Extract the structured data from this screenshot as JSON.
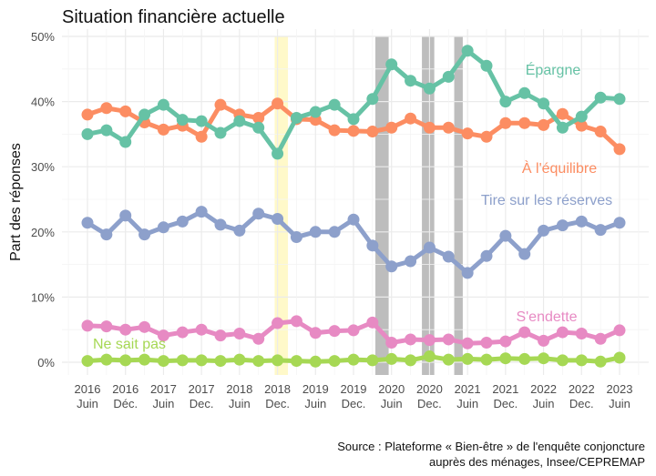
{
  "chart_data": {
    "type": "line",
    "title": "Situation financière actuelle",
    "ylabel": "Part des réponses",
    "xlabel": "",
    "ylim": [
      0,
      50
    ],
    "yticks": [
      "0%",
      "10%",
      "20%",
      "30%",
      "40%",
      "50%"
    ],
    "ytick_values": [
      0,
      10,
      20,
      30,
      40,
      50
    ],
    "grid": true,
    "legend": "inline labels",
    "xtick_labels": [
      [
        "2016",
        "Juin"
      ],
      [
        "2016",
        "Déc."
      ],
      [
        "2017",
        "Juin"
      ],
      [
        "2017",
        "Dec."
      ],
      [
        "2018",
        "Juin"
      ],
      [
        "2018",
        "Dec."
      ],
      [
        "2019",
        "Juin"
      ],
      [
        "2019",
        "Dec."
      ],
      [
        "2020",
        "Juin"
      ],
      [
        "2020",
        "Dec."
      ],
      [
        "2021",
        "Juin"
      ],
      [
        "2021",
        "Dec."
      ],
      [
        "2022",
        "Juin"
      ],
      [
        "2022",
        "Dec."
      ],
      [
        "2023",
        "Juin"
      ]
    ],
    "n_points": 29,
    "highlight_bands": [
      {
        "from": 9.85,
        "to": 10.55,
        "color": "#fff9c9"
      },
      {
        "from": 15.15,
        "to": 15.85,
        "color": "#bdbdbd"
      },
      {
        "from": 17.6,
        "to": 18.25,
        "color": "#bdbdbd"
      },
      {
        "from": 19.3,
        "to": 19.75,
        "color": "#bdbdbd"
      }
    ],
    "series": [
      {
        "name": "Épargne",
        "color": "#66c2a5",
        "values": [
          35,
          35.6,
          33.8,
          38,
          39.5,
          37.2,
          37,
          35.2,
          37,
          36,
          32,
          37.5,
          38.4,
          39.5,
          37.3,
          40.4,
          45.7,
          43.2,
          42,
          43.8,
          47.8,
          45.5,
          40,
          41.3,
          39.7,
          36,
          37.7,
          40.6,
          40.4
        ]
      },
      {
        "name": "À l'équilibre",
        "color": "#fc8d62",
        "values": [
          38,
          39,
          38.5,
          36.8,
          35.7,
          36.3,
          34.6,
          39.5,
          38,
          37.5,
          39.7,
          37.3,
          37.2,
          35.6,
          35.5,
          35.4,
          36,
          37.4,
          36,
          36,
          35.1,
          34.6,
          36.7,
          36.7,
          36.4,
          38.1,
          36.3,
          35.4,
          32.7
        ]
      },
      {
        "name": "Tire sur les réserves",
        "color": "#8da0cb",
        "values": [
          21.4,
          19.6,
          22.5,
          19.6,
          20.7,
          21.6,
          23.1,
          21.1,
          20.2,
          22.8,
          22,
          19.2,
          20,
          20,
          21.9,
          17.9,
          14.7,
          15.5,
          17.6,
          16.2,
          13.7,
          16.3,
          19.4,
          16.6,
          20.2,
          21,
          21.6,
          20.3,
          21.4
        ]
      },
      {
        "name": "S'endette",
        "color": "#e78ac3",
        "values": [
          5.6,
          5.5,
          5,
          5.4,
          4.1,
          4.6,
          5,
          4.1,
          4.4,
          3.6,
          6,
          6.3,
          4.5,
          4.8,
          4.9,
          6.1,
          3,
          3.5,
          3.4,
          3.5,
          2.9,
          3,
          3.2,
          4.6,
          3.3,
          4.6,
          4.4,
          3.6,
          4.9
        ]
      },
      {
        "name": "Ne sait pas",
        "color": "#a6d854",
        "values": [
          0.2,
          0.4,
          0.3,
          0.4,
          0.2,
          0.3,
          0.3,
          0.2,
          0.4,
          0.2,
          0.3,
          0.2,
          0.1,
          0.2,
          0.4,
          0.3,
          0.5,
          0.3,
          0.9,
          0.4,
          0.5,
          0.4,
          0.6,
          0.5,
          0.6,
          0.3,
          0.3,
          0.1,
          0.7
        ]
      }
    ],
    "source": [
      "Source : Plateforme « Bien-être » de l'enquête conjoncture",
      "auprès des ménages, Insee/CEPREMAP"
    ]
  }
}
